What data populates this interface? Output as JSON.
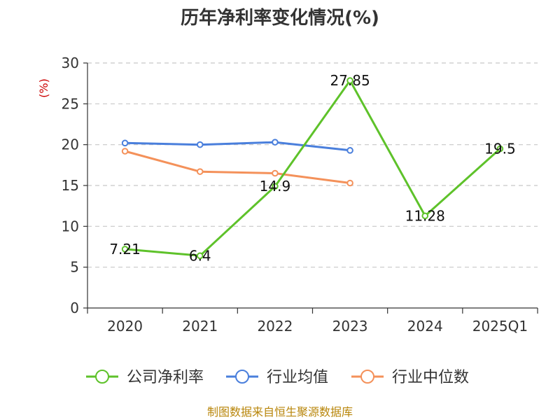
{
  "chart_data": {
    "type": "line",
    "title": "历年净利率变化情况(%)",
    "ylabel": "(%)",
    "categories": [
      "2020",
      "2021",
      "2022",
      "2023",
      "2024",
      "2025Q1"
    ],
    "ylim": [
      0,
      30
    ],
    "yticks": [
      0,
      5,
      10,
      15,
      20,
      25,
      30
    ],
    "grid": true,
    "legend_position": "bottom",
    "series": [
      {
        "name": "公司净利率",
        "color": "#5ec22a",
        "values": [
          7.21,
          6.4,
          14.9,
          27.85,
          11.28,
          19.5
        ],
        "labels": [
          "7.21",
          "6.4",
          "14.9",
          "27.85",
          "11.28",
          "19.5"
        ]
      },
      {
        "name": "行业均值",
        "color": "#4a7fdc",
        "values": [
          20.2,
          20.0,
          20.3,
          19.3,
          null,
          null
        ]
      },
      {
        "name": "行业中位数",
        "color": "#f4915a",
        "values": [
          19.2,
          16.7,
          16.5,
          15.3,
          null,
          null
        ]
      }
    ]
  },
  "source": "制图数据来自恒生聚源数据库"
}
